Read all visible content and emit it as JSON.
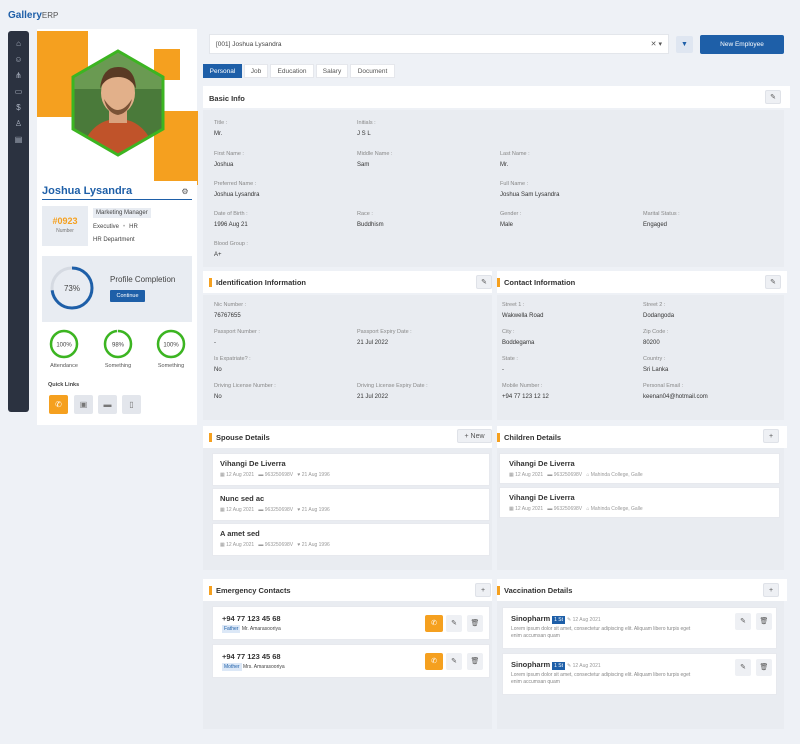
{
  "app": {
    "name": "Gallery",
    "suffix": "ERP"
  },
  "rail": {
    "icons": [
      "home-icon",
      "users-icon",
      "share-icon",
      "id-card-icon",
      "dollar-icon",
      "user-plus-icon",
      "book-icon"
    ]
  },
  "profile": {
    "name": "Joshua Lysandra",
    "number": "#0923",
    "number_label": "Number",
    "role": "Marketing Manager",
    "level": "Executive",
    "dept_short": "HR",
    "department": "HR Department",
    "completion_pct": "73%",
    "completion_fraction": 0.73,
    "completion_title": "Profile Completion",
    "continue": "Continue",
    "stats": [
      {
        "pct": "100%",
        "label": "Attendance",
        "fraction": 1.0
      },
      {
        "pct": "98%",
        "label": "Something",
        "fraction": 0.98
      },
      {
        "pct": "100%",
        "label": "Something",
        "fraction": 1.0
      }
    ],
    "quick_links_title": "Quick Links"
  },
  "search": {
    "value": "[001] Joshua Lysandra"
  },
  "buttons": {
    "new_employee": "New Employee"
  },
  "tabs": [
    "Personal",
    "Job",
    "Education",
    "Salary",
    "Document"
  ],
  "basic": {
    "title": "Basic Info",
    "fields": [
      {
        "label": "Title :",
        "value": "Mr."
      },
      {
        "label": "Initials :",
        "value": "J S L"
      },
      {
        "label": "First Name :",
        "value": "Joshua"
      },
      {
        "label": "Middle Name :",
        "value": "Sam"
      },
      {
        "label": "Last Name :",
        "value": "Mr."
      },
      {
        "label": "Preferred Name :",
        "value": "Joshua Lysandra"
      },
      {
        "label": "Full Name :",
        "value": "Joshua Sam Lysandra"
      },
      {
        "label": "Date of Birth :",
        "value": "1996 Aug 21"
      },
      {
        "label": "Race :",
        "value": "Buddhism"
      },
      {
        "label": "Gender :",
        "value": "Male"
      },
      {
        "label": "Marital Status :",
        "value": "Engaged"
      },
      {
        "label": "Blood Group :",
        "value": "A+"
      }
    ]
  },
  "identification": {
    "title": "Identification Information",
    "fields": [
      {
        "label": "Nic Number :",
        "value": "76767655"
      },
      {
        "label": "Passport Number :",
        "value": "-"
      },
      {
        "label": "Passport Expiry Date :",
        "value": "21 Jul 2022"
      },
      {
        "label": "Is Expatriate? :",
        "value": "No"
      },
      {
        "label": "Driving License Number :",
        "value": "No"
      },
      {
        "label": "Driving License Expiry Date :",
        "value": "21 Jul 2022"
      }
    ]
  },
  "contact": {
    "title": "Contact Information",
    "fields": [
      {
        "label": "Street 1 :",
        "value": "Wakwella Road"
      },
      {
        "label": "Street 2 :",
        "value": "Dodangoda"
      },
      {
        "label": "City :",
        "value": "Boddegama"
      },
      {
        "label": "Zip Code :",
        "value": "80200"
      },
      {
        "label": "State :",
        "value": "-"
      },
      {
        "label": "Country :",
        "value": "Sri Lanka"
      },
      {
        "label": "Mobile Number :",
        "value": "+94 77 123 12 12"
      },
      {
        "label": "Personal Email :",
        "value": "keenan04@hotmail.com"
      }
    ]
  },
  "spouse": {
    "title": "Spouse Details",
    "new": "New",
    "items": [
      {
        "name": "Vihangi De Liverra",
        "date": "12 Aug 2021",
        "nic": "963250698V",
        "dob": "21 Aug 1996"
      },
      {
        "name": "Nunc sed ac",
        "date": "12 Aug 2021",
        "nic": "963250698V",
        "dob": "21 Aug 1996"
      },
      {
        "name": "A amet sed",
        "date": "12 Aug 2021",
        "nic": "963250698V",
        "dob": "21 Aug 1996"
      }
    ]
  },
  "children": {
    "title": "Children Details",
    "items": [
      {
        "name": "Vihangi De Liverra",
        "date": "12 Aug 2021",
        "nic": "963250698V",
        "school": "Mahinda College, Galle"
      },
      {
        "name": "Vihangi De Liverra",
        "date": "12 Aug 2021",
        "nic": "963250698V",
        "school": "Mahinda College, Galle"
      }
    ]
  },
  "emergency": {
    "title": "Emergency Contacts",
    "items": [
      {
        "phone": "+94 77 123 45 68",
        "relation": "Father",
        "name": "Mr. Amarasooriya"
      },
      {
        "phone": "+94 77 123 45 68",
        "relation": "Mother",
        "name": "Mrs. Amarasooriya"
      }
    ]
  },
  "vaccination": {
    "title": "Vaccination Details",
    "items": [
      {
        "name": "Sinopharm",
        "dose": "1 St",
        "date": "12 Aug 2021",
        "text": "Lorem ipsum dolor sit amet, consectetur adipiscing elit. Aliquam libero turpis eget enim accumsan quam"
      },
      {
        "name": "Sinopharm",
        "dose": "1 St",
        "date": "12 Aug 2021",
        "text": "Lorem ipsum dolor sit amet, consectetur adipiscing elit. Aliquam libero turpis eget enim accumsan quam"
      }
    ]
  },
  "colors": {
    "accent": "#f5a01f",
    "primary": "#1e5fa8",
    "success": "#3cb521",
    "rail": "#2b3240"
  }
}
